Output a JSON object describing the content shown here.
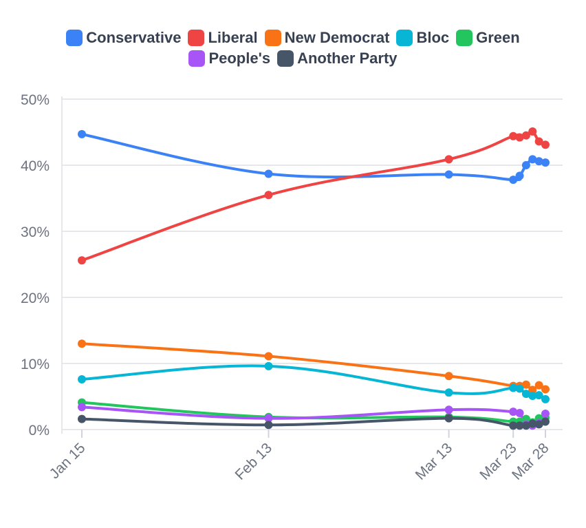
{
  "chart_data": {
    "type": "line",
    "title": "",
    "xlabel": "",
    "ylabel": "",
    "ylim": [
      0,
      50
    ],
    "y_ticks": [
      "0%",
      "10%",
      "20%",
      "30%",
      "40%",
      "50%"
    ],
    "x_ticks": [
      {
        "label": "Jan 15",
        "day": 0
      },
      {
        "label": "Feb 13",
        "day": 29
      },
      {
        "label": "Mar 13",
        "day": 57
      },
      {
        "label": "Mar 23",
        "day": 67
      },
      {
        "label": "Mar 28",
        "day": 72
      }
    ],
    "x_days": [
      0,
      29,
      57,
      67,
      68,
      69,
      70,
      71,
      72
    ],
    "series": [
      {
        "name": "Conservative",
        "color": "#3b82f6",
        "values": [
          44.7,
          38.7,
          38.6,
          37.8,
          38.4,
          40.0,
          40.9,
          40.6,
          40.4
        ]
      },
      {
        "name": "Liberal",
        "color": "#ef4444",
        "values": [
          25.6,
          35.5,
          40.9,
          44.4,
          44.2,
          44.5,
          45.1,
          43.6,
          43.1
        ]
      },
      {
        "name": "New Democrat",
        "color": "#f97316",
        "values": [
          13.0,
          11.1,
          8.1,
          6.6,
          6.6,
          6.8,
          6.0,
          6.7,
          6.1
        ]
      },
      {
        "name": "Bloc",
        "color": "#06b6d4",
        "values": [
          7.6,
          9.6,
          5.6,
          6.3,
          6.2,
          5.4,
          5.1,
          5.2,
          4.6
        ]
      },
      {
        "name": "Green",
        "color": "#22c55e",
        "values": [
          4.1,
          1.9,
          1.9,
          1.2,
          1.2,
          1.6,
          1.1,
          1.7,
          1.8
        ]
      },
      {
        "name": "People's",
        "color": "#a855f7",
        "values": [
          3.4,
          1.7,
          3.0,
          2.7,
          2.5,
          0.8,
          0.6,
          1.0,
          2.4
        ]
      },
      {
        "name": "Another Party",
        "color": "#475569",
        "values": [
          1.6,
          0.7,
          1.7,
          0.6,
          0.6,
          0.6,
          0.9,
          0.8,
          1.2
        ]
      }
    ],
    "legend_position": "top-center"
  }
}
